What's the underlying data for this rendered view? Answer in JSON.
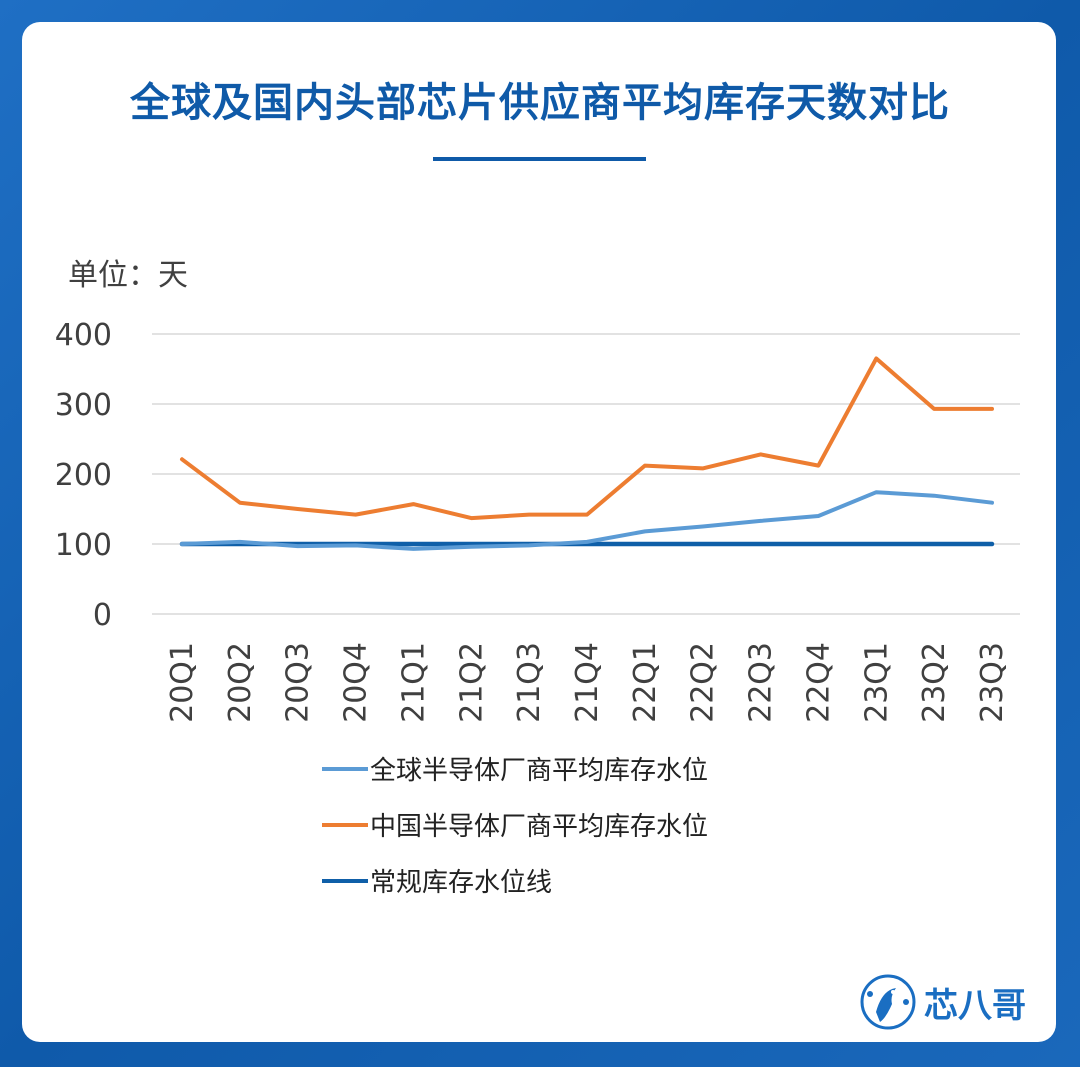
{
  "title": "全球及国内头部芯片供应商平均库存天数对比",
  "brand": {
    "name": "芯八哥",
    "logo_icon": "bird-circuit-icon"
  },
  "colors": {
    "global": "#5b9bd5",
    "china": "#ed7d31",
    "baseline": "#0f5fa8"
  },
  "chart_data": {
    "type": "line",
    "unit_label": "单位：天",
    "ylim": [
      0,
      400
    ],
    "yticks": [
      0,
      100,
      200,
      300,
      400
    ],
    "grid": true,
    "legend_position": "bottom",
    "categories": [
      "20Q1",
      "20Q2",
      "20Q3",
      "20Q4",
      "21Q1",
      "21Q2",
      "21Q3",
      "21Q4",
      "22Q1",
      "22Q2",
      "22Q3",
      "22Q4",
      "23Q1",
      "23Q2",
      "23Q3"
    ],
    "series": [
      {
        "name": "全球半导体厂商平均库存水位",
        "key": "global",
        "values": [
          100,
          103,
          97,
          98,
          93,
          96,
          98,
          103,
          118,
          125,
          133,
          140,
          174,
          169,
          159
        ]
      },
      {
        "name": "中国半导体厂商平均库存水位",
        "key": "china",
        "values": [
          221,
          159,
          150,
          142,
          157,
          137,
          142,
          142,
          212,
          208,
          228,
          212,
          365,
          293,
          293
        ]
      },
      {
        "name": "常规库存水位线",
        "key": "baseline",
        "values": [
          100,
          100,
          100,
          100,
          100,
          100,
          100,
          100,
          100,
          100,
          100,
          100,
          100,
          100,
          100
        ]
      }
    ]
  }
}
